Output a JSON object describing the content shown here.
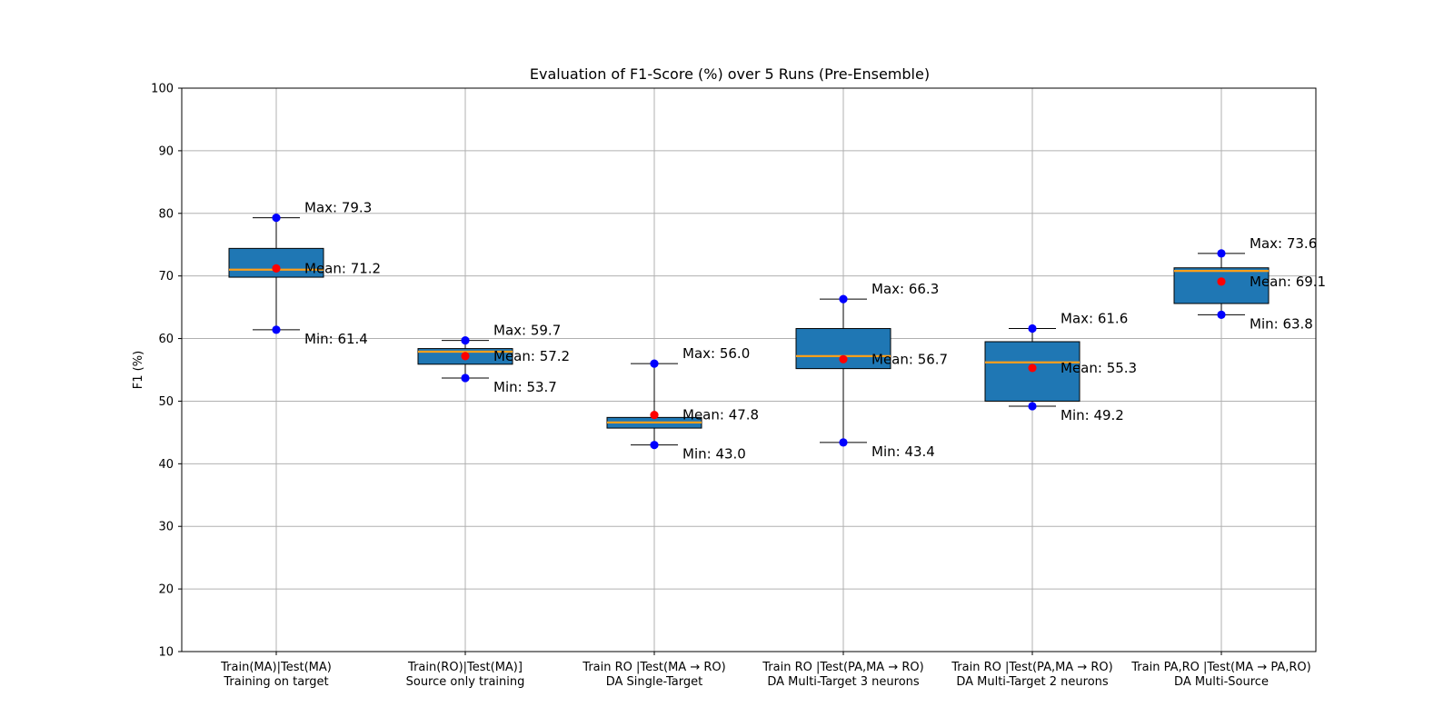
{
  "chart_data": {
    "type": "box",
    "title": "Evaluation of F1-Score (%) over 5 Runs (Pre-Ensemble)",
    "xlabel": "",
    "ylabel": "F1 (%)",
    "ylim": [
      10,
      100
    ],
    "yticks": [
      10,
      20,
      30,
      40,
      50,
      60,
      70,
      80,
      90,
      100
    ],
    "grid": true,
    "categories": [
      {
        "line1": "Train(MA)|Test(MA)",
        "line2": "Training on target"
      },
      {
        "line1": "Train(RO)|Test(MA)]",
        "line2": "Source only training"
      },
      {
        "line1": "Train RO |Test(MA → RO)",
        "line2": "DA Single-Target"
      },
      {
        "line1": "Train RO |Test(PA,MA → RO)",
        "line2": "DA Multi-Target 3 neurons"
      },
      {
        "line1": "Train RO |Test(PA,MA → RO)",
        "line2": "DA Multi-Target 2 neurons"
      },
      {
        "line1": "Train PA,RO |Test(MA → PA,RO)",
        "line2": "DA Multi-Source"
      }
    ],
    "boxes": [
      {
        "min": 61.4,
        "q1": 69.8,
        "median": 71.0,
        "q3": 74.4,
        "max": 79.3,
        "mean": 71.2
      },
      {
        "min": 53.7,
        "q1": 55.9,
        "median": 57.9,
        "q3": 58.4,
        "max": 59.7,
        "mean": 57.2
      },
      {
        "min": 43.0,
        "q1": 45.7,
        "median": 46.6,
        "q3": 47.4,
        "max": 56.0,
        "mean": 47.8
      },
      {
        "min": 43.4,
        "q1": 55.2,
        "median": 57.2,
        "q3": 61.6,
        "max": 66.3,
        "mean": 56.7
      },
      {
        "min": 49.2,
        "q1": 50.0,
        "median": 56.2,
        "q3": 59.5,
        "max": 61.6,
        "mean": 55.3
      },
      {
        "min": 63.8,
        "q1": 65.6,
        "median": 70.8,
        "q3": 71.3,
        "max": 73.6,
        "mean": 69.1
      }
    ],
    "annotation_prefixes": {
      "max": "Max: ",
      "mean": "Mean: ",
      "min": "Min: "
    },
    "colors": {
      "box_fill": "#1f77b4",
      "median": "#ff9f1a",
      "minmax_point": "#0000ff",
      "mean_point": "#ff0000",
      "grid": "#b0b0b0"
    }
  }
}
